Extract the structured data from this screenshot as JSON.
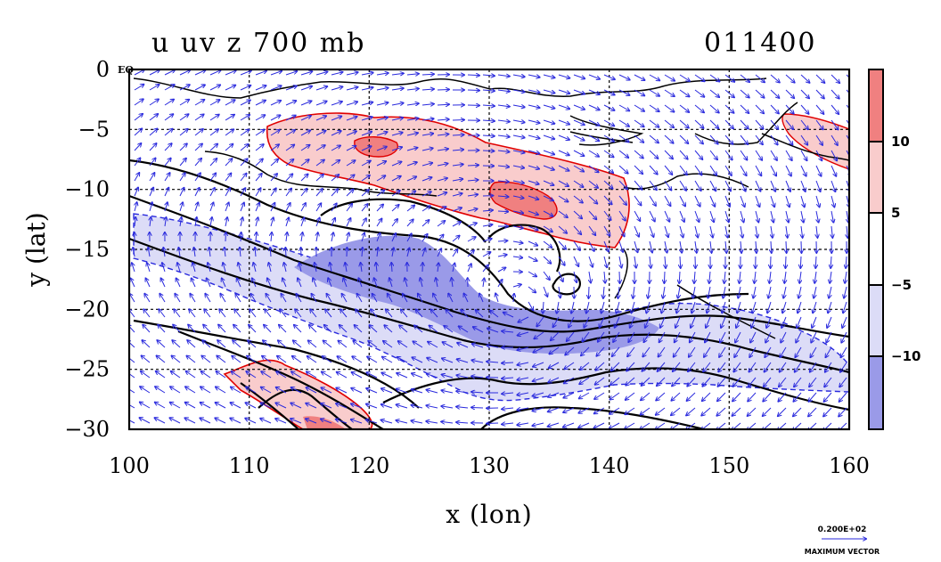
{
  "title": {
    "left": "u uv z 700 mb",
    "right": "011400"
  },
  "axes": {
    "xlabel": "x (lon)",
    "ylabel": "y (lat)",
    "xlim": [
      100,
      160
    ],
    "ylim": [
      -30,
      0
    ],
    "xticks": [
      "100",
      "110",
      "120",
      "130",
      "140",
      "150",
      "160"
    ],
    "yticks": [
      "0",
      "−5",
      "−10",
      "−15",
      "−20",
      "−25",
      "−30"
    ],
    "eq_marker": "EQ"
  },
  "colorbar": {
    "labels": [
      "10",
      "5",
      "−5",
      "−10"
    ],
    "colors": [
      "#f08080",
      "#f9cccc",
      "#ffffff",
      "#dcdcf7",
      "#9a9ae8"
    ]
  },
  "vector_key": {
    "value": "0.200E+02",
    "caption": "MAXIMUM VECTOR"
  },
  "colors": {
    "vector": "#2a2add",
    "positive_contour": "#e00000",
    "negative_contour": "#2a2add",
    "geopotential_contour": "#000000",
    "grid": "#000000"
  }
}
